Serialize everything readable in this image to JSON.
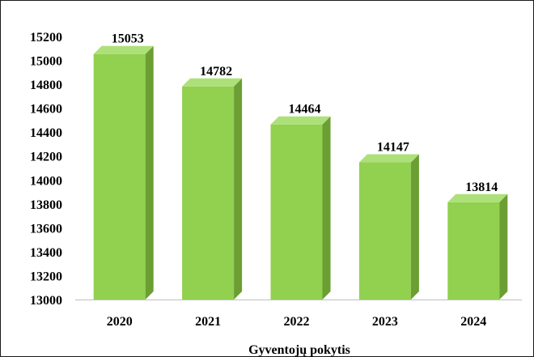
{
  "chart_data": {
    "type": "bar",
    "title": "",
    "xlabel": "Gyventojų pokytis",
    "ylabel": "",
    "categories": [
      "2020",
      "2021",
      "2022",
      "2023",
      "2024"
    ],
    "values": [
      15053,
      14782,
      14464,
      14147,
      13814
    ],
    "data_labels": [
      "15053",
      "14782",
      "14464",
      "14147",
      "13814"
    ],
    "y_ticks": [
      "13000",
      "13200",
      "13400",
      "13600",
      "13800",
      "14000",
      "14200",
      "14400",
      "14600",
      "14800",
      "15000",
      "15200"
    ],
    "ylim": [
      13000,
      15200
    ],
    "grid": false,
    "legend": "none",
    "style": "3d-column",
    "colors": {
      "bar_front": "#92d050",
      "bar_side": "#6b9e33",
      "bar_top": "#aee07a",
      "axis_line": "#bfbfbf",
      "frame": "#1a1a1a"
    }
  }
}
